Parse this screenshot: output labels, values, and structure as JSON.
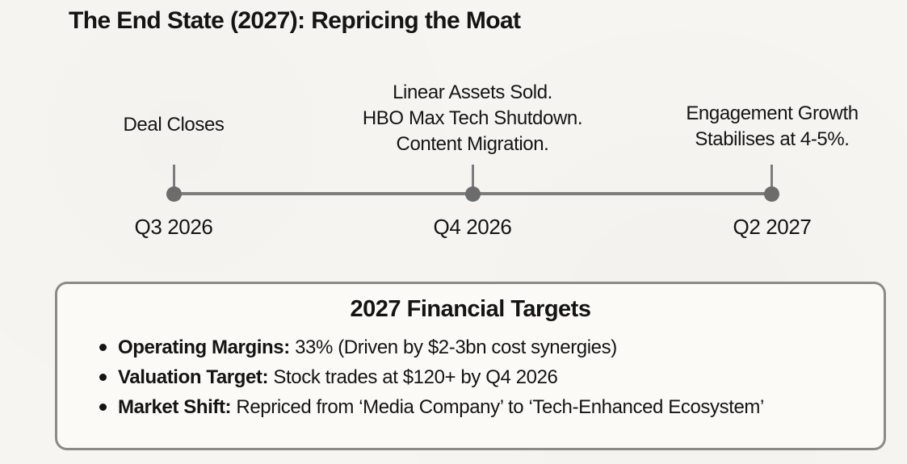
{
  "page": {
    "title": "The End State (2027): Repricing the Moat"
  },
  "timeline": {
    "milestones": [
      {
        "label_lines": [
          "Deal Closes"
        ],
        "date": "Q3 2026"
      },
      {
        "label_lines": [
          "Linear Assets Sold.",
          "HBO Max Tech Shutdown.",
          "Content Migration."
        ],
        "date": "Q4 2026"
      },
      {
        "label_lines": [
          "Engagement Growth",
          "Stabilises at 4-5%."
        ],
        "date": "Q2 2027"
      }
    ]
  },
  "targets_box": {
    "heading": "2027 Financial Targets",
    "items": [
      {
        "label": "Operating Margins:",
        "text": " 33% (Driven by $2-3bn cost synergies)"
      },
      {
        "label": "Valuation Target:",
        "text": " Stock trades at $120+ by Q4 2026"
      },
      {
        "label": "Market Shift:",
        "text": " Repriced from ‘Media Company’ to ‘Tech-Enhanced Ecosystem’"
      }
    ]
  },
  "colors": {
    "background": "#f7f5f1",
    "text": "#141414",
    "timeline_gray": "#7c7c7c",
    "dot_gray": "#6c6c6c",
    "box_border": "#8b8b85",
    "box_fill": "#fbfaf6"
  }
}
